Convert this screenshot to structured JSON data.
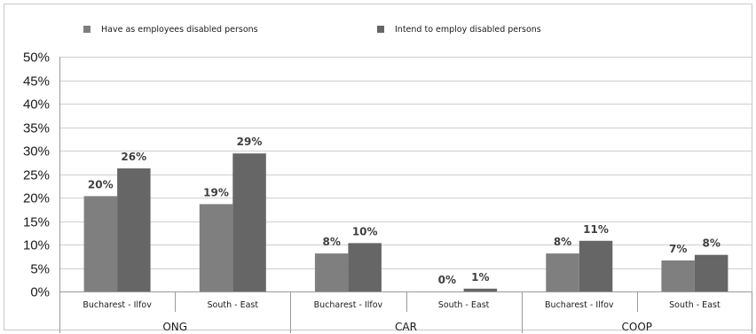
{
  "chart_data": {
    "type": "bar",
    "y_tick_labels": [
      "0%",
      "5%",
      "10%",
      "15%",
      "20%",
      "25%",
      "30%",
      "35%",
      "40%",
      "45%",
      "50%"
    ],
    "ylim": [
      0,
      50
    ],
    "grid": true,
    "legend_position": "top",
    "groups": [
      {
        "label": "ONG",
        "categories": [
          "Bucharest - Ilfov",
          "South - East"
        ]
      },
      {
        "label": "CAR",
        "categories": [
          "Bucharest - Ilfov",
          "South - East"
        ]
      },
      {
        "label": "COOP",
        "categories": [
          "Bucharest - Ilfov",
          "South - East"
        ]
      }
    ],
    "series": [
      {
        "name": "Have as employees disabled persons",
        "color": "#7f7f7f",
        "values": [
          20.3,
          18.6,
          8.1,
          0,
          8.1,
          6.6
        ],
        "labels": [
          "20%",
          "19%",
          "8%",
          "0%",
          "8%",
          "7%"
        ]
      },
      {
        "name": "Intend to employ disabled persons",
        "color": "#666666",
        "values": [
          26.2,
          29.4,
          10.3,
          0.6,
          10.8,
          7.8
        ],
        "labels": [
          "26%",
          "29%",
          "10%",
          "1%",
          "11%",
          "8%"
        ]
      }
    ]
  }
}
